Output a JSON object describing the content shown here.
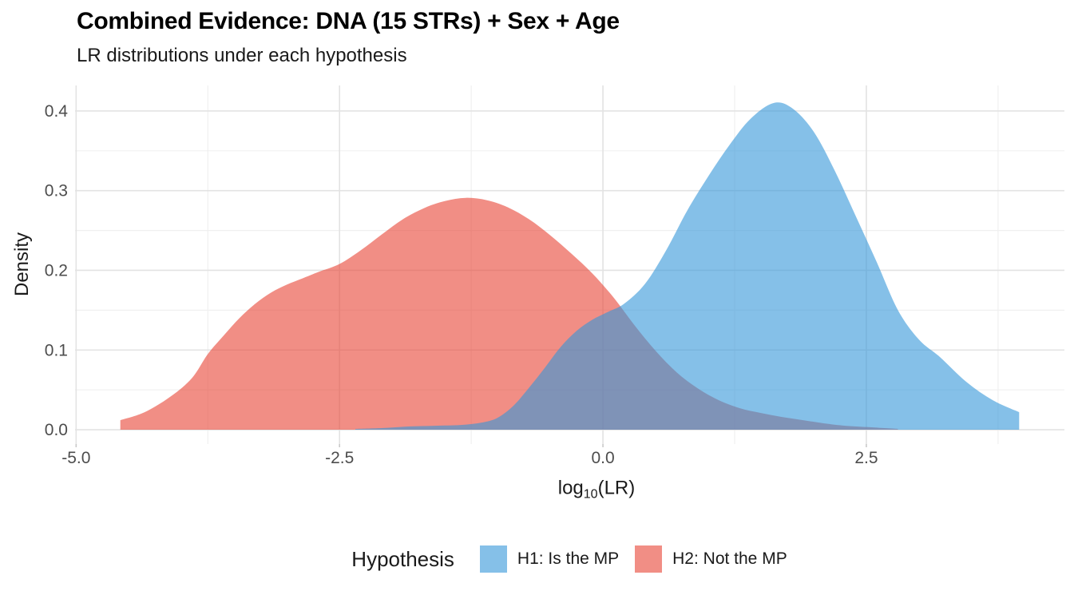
{
  "title": "Combined Evidence: DNA (15 STRs) + Sex + Age",
  "subtitle": "LR distributions under each hypothesis",
  "chart_data": {
    "type": "area",
    "title": "Combined Evidence: DNA (15 STRs) + Sex + Age",
    "subtitle": "LR distributions under each hypothesis",
    "xlabel_parts": {
      "pre": "log",
      "sub": "10",
      "post": "(LR)"
    },
    "ylabel": "Density",
    "legend_title": "Hypothesis",
    "xlim": [
      -5.01,
      4.38
    ],
    "ylim": [
      -0.018,
      0.432
    ],
    "grid": "on",
    "legend_position": "bottom",
    "x_ticks": [
      {
        "value": -5.0,
        "label": "-5.0"
      },
      {
        "value": -2.5,
        "label": "-2.5"
      },
      {
        "value": 0.0,
        "label": "0.0"
      },
      {
        "value": 2.5,
        "label": "2.5"
      }
    ],
    "x_minor_ticks": [
      -3.75,
      -1.25,
      1.25,
      3.75
    ],
    "y_ticks": [
      {
        "value": 0.0,
        "label": "0.0"
      },
      {
        "value": 0.1,
        "label": "0.1"
      },
      {
        "value": 0.2,
        "label": "0.2"
      },
      {
        "value": 0.3,
        "label": "0.3"
      },
      {
        "value": 0.4,
        "label": "0.4"
      }
    ],
    "y_minor_ticks": [
      0.05,
      0.15,
      0.25,
      0.35
    ],
    "colors": {
      "grid_major": "#e3e3e3",
      "grid_minor": "#f0f0f0",
      "tick_mark": "#c9c9c9",
      "tick_label": "#4d4d4d",
      "axis_title": "#1a1a1a"
    },
    "series": [
      {
        "name": "H1: Is the MP",
        "fill": "rgba(52,150,217,0.6)",
        "z": 2,
        "points": [
          [
            -2.35,
            0.001
          ],
          [
            -2.1,
            0.002
          ],
          [
            -1.85,
            0.004
          ],
          [
            -1.6,
            0.005
          ],
          [
            -1.35,
            0.006
          ],
          [
            -1.15,
            0.009
          ],
          [
            -1.0,
            0.015
          ],
          [
            -0.85,
            0.03
          ],
          [
            -0.7,
            0.053
          ],
          [
            -0.55,
            0.078
          ],
          [
            -0.4,
            0.104
          ],
          [
            -0.25,
            0.124
          ],
          [
            -0.1,
            0.138
          ],
          [
            0.05,
            0.148
          ],
          [
            0.2,
            0.158
          ],
          [
            0.4,
            0.183
          ],
          [
            0.6,
            0.225
          ],
          [
            0.8,
            0.275
          ],
          [
            1.0,
            0.318
          ],
          [
            1.2,
            0.357
          ],
          [
            1.4,
            0.39
          ],
          [
            1.62,
            0.41
          ],
          [
            1.8,
            0.403
          ],
          [
            2.0,
            0.374
          ],
          [
            2.2,
            0.325
          ],
          [
            2.4,
            0.268
          ],
          [
            2.6,
            0.21
          ],
          [
            2.8,
            0.15
          ],
          [
            3.0,
            0.113
          ],
          [
            3.2,
            0.091
          ],
          [
            3.45,
            0.06
          ],
          [
            3.7,
            0.037
          ],
          [
            3.95,
            0.022
          ]
        ]
      },
      {
        "name": "H2: Not the MP",
        "fill": "rgba(231,66,51,0.6)",
        "z": 1,
        "points": [
          [
            -4.58,
            0.012
          ],
          [
            -4.35,
            0.022
          ],
          [
            -4.1,
            0.042
          ],
          [
            -3.9,
            0.065
          ],
          [
            -3.75,
            0.095
          ],
          [
            -3.6,
            0.118
          ],
          [
            -3.45,
            0.14
          ],
          [
            -3.3,
            0.158
          ],
          [
            -3.15,
            0.172
          ],
          [
            -3.0,
            0.182
          ],
          [
            -2.85,
            0.19
          ],
          [
            -2.7,
            0.198
          ],
          [
            -2.5,
            0.208
          ],
          [
            -2.3,
            0.225
          ],
          [
            -2.1,
            0.245
          ],
          [
            -1.9,
            0.264
          ],
          [
            -1.7,
            0.278
          ],
          [
            -1.5,
            0.287
          ],
          [
            -1.3,
            0.291
          ],
          [
            -1.1,
            0.288
          ],
          [
            -0.9,
            0.279
          ],
          [
            -0.7,
            0.264
          ],
          [
            -0.5,
            0.244
          ],
          [
            -0.3,
            0.221
          ],
          [
            -0.1,
            0.196
          ],
          [
            0.1,
            0.166
          ],
          [
            0.3,
            0.131
          ],
          [
            0.5,
            0.099
          ],
          [
            0.7,
            0.072
          ],
          [
            0.9,
            0.052
          ],
          [
            1.1,
            0.037
          ],
          [
            1.3,
            0.027
          ],
          [
            1.5,
            0.021
          ],
          [
            1.7,
            0.016
          ],
          [
            1.9,
            0.012
          ],
          [
            2.1,
            0.008
          ],
          [
            2.3,
            0.005
          ],
          [
            2.55,
            0.003
          ],
          [
            2.8,
            0.001
          ]
        ]
      }
    ]
  }
}
